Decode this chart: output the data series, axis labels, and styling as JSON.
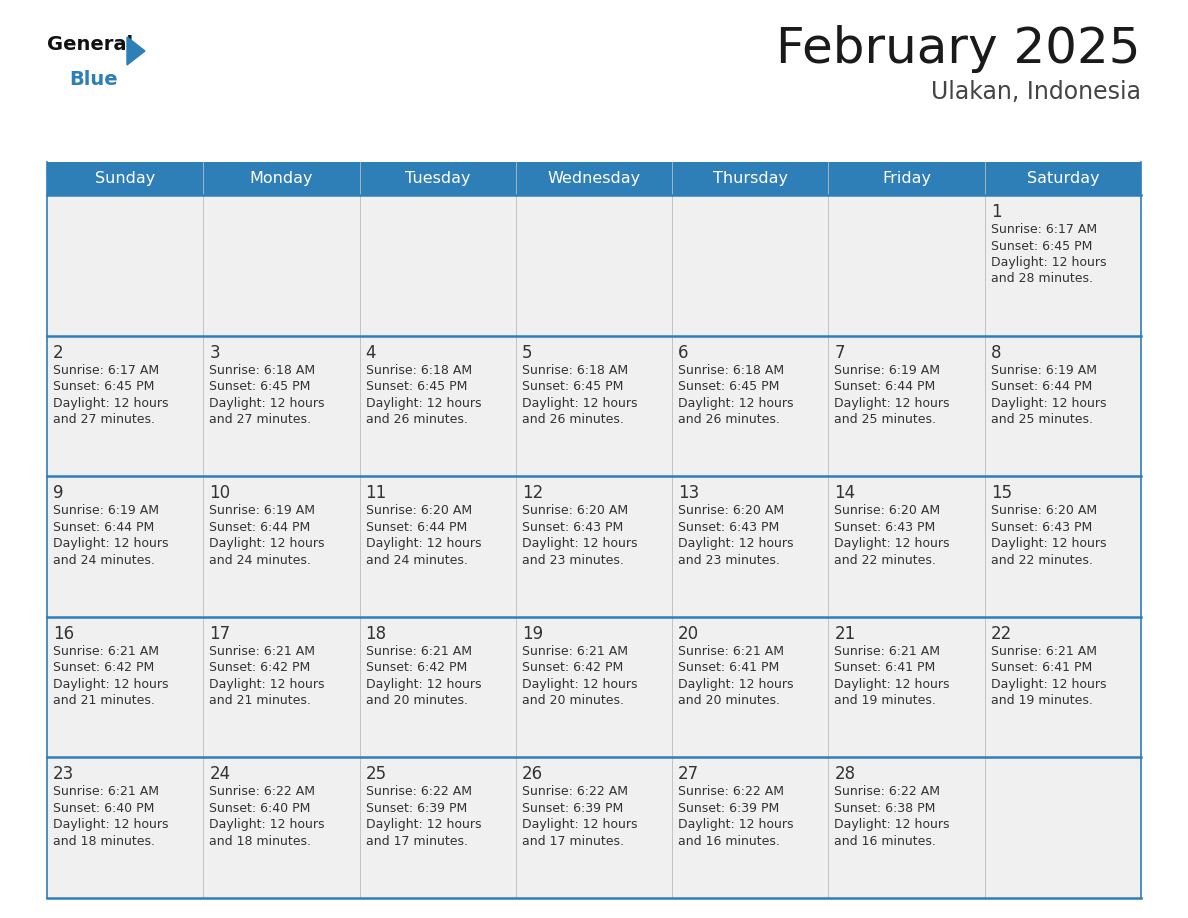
{
  "title": "February 2025",
  "subtitle": "Ulakan, Indonesia",
  "header_bg": "#2E7EB8",
  "header_text_color": "#FFFFFF",
  "cell_bg": "#F0F0F0",
  "day_names": [
    "Sunday",
    "Monday",
    "Tuesday",
    "Wednesday",
    "Thursday",
    "Friday",
    "Saturday"
  ],
  "text_color": "#333333",
  "day_number_color": "#333333",
  "title_color": "#1a1a1a",
  "subtitle_color": "#444444",
  "divider_color": "#2E7EB8",
  "logo_general_color": "#111111",
  "logo_blue_color": "#2E7EB8",
  "weeks": [
    [
      {
        "day": null,
        "sunrise": null,
        "sunset": null,
        "daylight": null
      },
      {
        "day": null,
        "sunrise": null,
        "sunset": null,
        "daylight": null
      },
      {
        "day": null,
        "sunrise": null,
        "sunset": null,
        "daylight": null
      },
      {
        "day": null,
        "sunrise": null,
        "sunset": null,
        "daylight": null
      },
      {
        "day": null,
        "sunrise": null,
        "sunset": null,
        "daylight": null
      },
      {
        "day": null,
        "sunrise": null,
        "sunset": null,
        "daylight": null
      },
      {
        "day": 1,
        "sunrise": "6:17 AM",
        "sunset": "6:45 PM",
        "daylight": "12 hours and 28 minutes."
      }
    ],
    [
      {
        "day": 2,
        "sunrise": "6:17 AM",
        "sunset": "6:45 PM",
        "daylight": "12 hours and 27 minutes."
      },
      {
        "day": 3,
        "sunrise": "6:18 AM",
        "sunset": "6:45 PM",
        "daylight": "12 hours and 27 minutes."
      },
      {
        "day": 4,
        "sunrise": "6:18 AM",
        "sunset": "6:45 PM",
        "daylight": "12 hours and 26 minutes."
      },
      {
        "day": 5,
        "sunrise": "6:18 AM",
        "sunset": "6:45 PM",
        "daylight": "12 hours and 26 minutes."
      },
      {
        "day": 6,
        "sunrise": "6:18 AM",
        "sunset": "6:45 PM",
        "daylight": "12 hours and 26 minutes."
      },
      {
        "day": 7,
        "sunrise": "6:19 AM",
        "sunset": "6:44 PM",
        "daylight": "12 hours and 25 minutes."
      },
      {
        "day": 8,
        "sunrise": "6:19 AM",
        "sunset": "6:44 PM",
        "daylight": "12 hours and 25 minutes."
      }
    ],
    [
      {
        "day": 9,
        "sunrise": "6:19 AM",
        "sunset": "6:44 PM",
        "daylight": "12 hours and 24 minutes."
      },
      {
        "day": 10,
        "sunrise": "6:19 AM",
        "sunset": "6:44 PM",
        "daylight": "12 hours and 24 minutes."
      },
      {
        "day": 11,
        "sunrise": "6:20 AM",
        "sunset": "6:44 PM",
        "daylight": "12 hours and 24 minutes."
      },
      {
        "day": 12,
        "sunrise": "6:20 AM",
        "sunset": "6:43 PM",
        "daylight": "12 hours and 23 minutes."
      },
      {
        "day": 13,
        "sunrise": "6:20 AM",
        "sunset": "6:43 PM",
        "daylight": "12 hours and 23 minutes."
      },
      {
        "day": 14,
        "sunrise": "6:20 AM",
        "sunset": "6:43 PM",
        "daylight": "12 hours and 22 minutes."
      },
      {
        "day": 15,
        "sunrise": "6:20 AM",
        "sunset": "6:43 PM",
        "daylight": "12 hours and 22 minutes."
      }
    ],
    [
      {
        "day": 16,
        "sunrise": "6:21 AM",
        "sunset": "6:42 PM",
        "daylight": "12 hours and 21 minutes."
      },
      {
        "day": 17,
        "sunrise": "6:21 AM",
        "sunset": "6:42 PM",
        "daylight": "12 hours and 21 minutes."
      },
      {
        "day": 18,
        "sunrise": "6:21 AM",
        "sunset": "6:42 PM",
        "daylight": "12 hours and 20 minutes."
      },
      {
        "day": 19,
        "sunrise": "6:21 AM",
        "sunset": "6:42 PM",
        "daylight": "12 hours and 20 minutes."
      },
      {
        "day": 20,
        "sunrise": "6:21 AM",
        "sunset": "6:41 PM",
        "daylight": "12 hours and 20 minutes."
      },
      {
        "day": 21,
        "sunrise": "6:21 AM",
        "sunset": "6:41 PM",
        "daylight": "12 hours and 19 minutes."
      },
      {
        "day": 22,
        "sunrise": "6:21 AM",
        "sunset": "6:41 PM",
        "daylight": "12 hours and 19 minutes."
      }
    ],
    [
      {
        "day": 23,
        "sunrise": "6:21 AM",
        "sunset": "6:40 PM",
        "daylight": "12 hours and 18 minutes."
      },
      {
        "day": 24,
        "sunrise": "6:22 AM",
        "sunset": "6:40 PM",
        "daylight": "12 hours and 18 minutes."
      },
      {
        "day": 25,
        "sunrise": "6:22 AM",
        "sunset": "6:39 PM",
        "daylight": "12 hours and 17 minutes."
      },
      {
        "day": 26,
        "sunrise": "6:22 AM",
        "sunset": "6:39 PM",
        "daylight": "12 hours and 17 minutes."
      },
      {
        "day": 27,
        "sunrise": "6:22 AM",
        "sunset": "6:39 PM",
        "daylight": "12 hours and 16 minutes."
      },
      {
        "day": 28,
        "sunrise": "6:22 AM",
        "sunset": "6:38 PM",
        "daylight": "12 hours and 16 minutes."
      },
      {
        "day": null,
        "sunrise": null,
        "sunset": null,
        "daylight": null
      }
    ]
  ]
}
